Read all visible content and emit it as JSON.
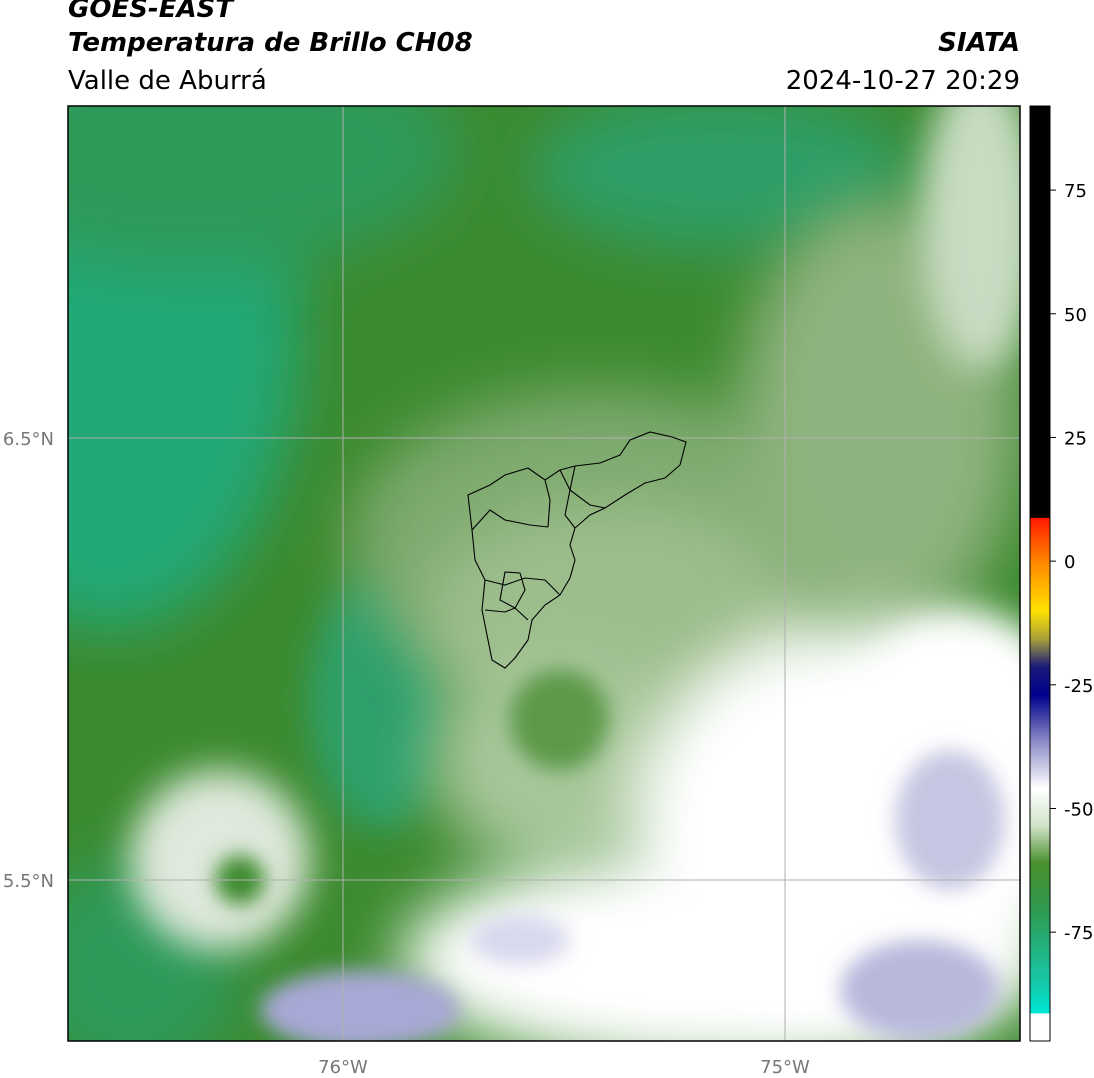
{
  "header": {
    "title_line1": "GOES-EAST",
    "title_line2": "Temperatura de Brillo CH08",
    "subtitle": "Valle de Aburrá",
    "organization": "SIATA",
    "timestamp": "2024-10-27 20:29"
  },
  "map": {
    "lat_labels": [
      "6.5°N",
      "5.5°N"
    ],
    "lon_labels": [
      "76°W",
      "75°W"
    ]
  },
  "colorbar": {
    "tick_labels": [
      "75",
      "50",
      "25",
      "0",
      "-25",
      "-50",
      "-75"
    ],
    "tick_values": [
      75,
      50,
      25,
      0,
      -25,
      -50,
      -75
    ],
    "range": [
      -97,
      92
    ]
  }
}
